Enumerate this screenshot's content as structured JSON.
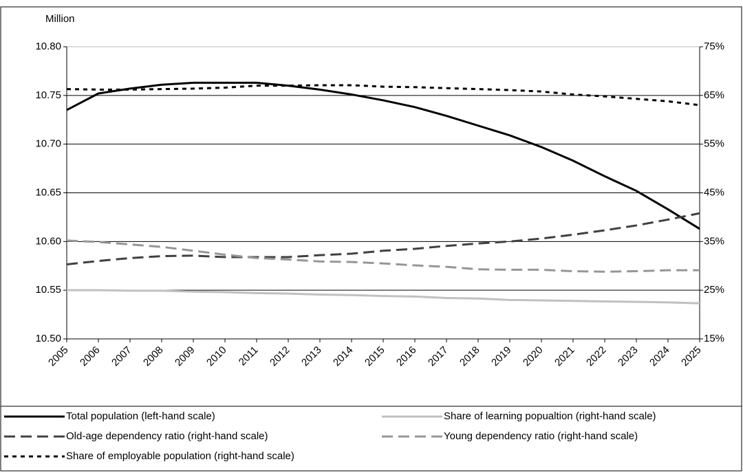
{
  "chart_data": {
    "type": "line",
    "y_axis_label": "Million",
    "categories": [
      "2005",
      "2006",
      "2007",
      "2008",
      "2009",
      "2010",
      "2011",
      "2012",
      "2013",
      "2014",
      "2015",
      "2016",
      "2017",
      "2018",
      "2019",
      "2020",
      "2021",
      "2022",
      "2023",
      "2024",
      "2025"
    ],
    "ylim": [
      10.5,
      10.8
    ],
    "yticks": [
      {
        "value": 10.5,
        "label": "10.50"
      },
      10.55,
      {
        "value": 10.6,
        "label": "10.60"
      },
      10.65,
      {
        "value": 10.7,
        "label": "10.70"
      },
      10.75,
      {
        "value": 10.8,
        "label": "10.80"
      }
    ],
    "y2lim": [
      15,
      75
    ],
    "y2ticks": [
      {
        "value": 15,
        "label": "15%"
      },
      {
        "value": 25,
        "label": "25%"
      },
      {
        "value": 35,
        "label": "35%"
      },
      {
        "value": 45,
        "label": "45%"
      },
      {
        "value": 55,
        "label": "55%"
      },
      {
        "value": 65,
        "label": "65%"
      },
      {
        "value": 75,
        "label": "75%"
      }
    ],
    "grid": true,
    "legend": "bottom",
    "series": [
      {
        "name": "Total population (left-hand scale)",
        "color": "#000000",
        "dash": "solid",
        "axis": "y",
        "values": [
          10.735,
          10.752,
          10.757,
          10.761,
          10.763,
          10.763,
          10.763,
          10.76,
          10.756,
          10.751,
          10.745,
          10.738,
          10.729,
          10.719,
          10.709,
          10.697,
          10.683,
          10.667,
          10.652,
          10.633,
          10.613
        ]
      },
      {
        "name": "Share of learning popualtion (right-hand scale)",
        "color": "#c0c0c0",
        "dash": "solid",
        "axis": "y2",
        "values": [
          25.0,
          25.0,
          24.9,
          24.9,
          24.7,
          24.6,
          24.4,
          24.3,
          24.1,
          24.0,
          23.8,
          23.7,
          23.4,
          23.3,
          23.0,
          22.9,
          22.8,
          22.7,
          22.6,
          22.5,
          22.3
        ]
      },
      {
        "name": "Old-age dependency ratio (right-hand scale)",
        "color": "#404040",
        "dash": "long-dash",
        "axis": "y2",
        "values": [
          30.3,
          31.0,
          31.6,
          32.0,
          32.1,
          31.8,
          31.8,
          31.8,
          32.2,
          32.5,
          33.1,
          33.5,
          34.1,
          34.6,
          35.0,
          35.6,
          36.4,
          37.3,
          38.3,
          39.5,
          40.8
        ]
      },
      {
        "name": "Young dependency ratio (right-hand scale)",
        "color": "#969696",
        "dash": "long-dash",
        "axis": "y2",
        "values": [
          35.2,
          34.9,
          34.4,
          33.9,
          33.1,
          32.3,
          31.6,
          31.3,
          30.9,
          30.8,
          30.5,
          30.1,
          29.8,
          29.3,
          29.2,
          29.2,
          28.9,
          28.8,
          28.9,
          29.1,
          29.1
        ]
      },
      {
        "name": "Share of employable population (right-hand scale)",
        "color": "#000000",
        "dash": "dot",
        "axis": "y2",
        "values": [
          66.3,
          66.2,
          66.2,
          66.3,
          66.4,
          66.6,
          67.0,
          67.0,
          67.1,
          67.1,
          66.8,
          66.7,
          66.5,
          66.3,
          66.1,
          65.8,
          65.2,
          64.8,
          64.3,
          63.8,
          63.0
        ]
      }
    ]
  }
}
